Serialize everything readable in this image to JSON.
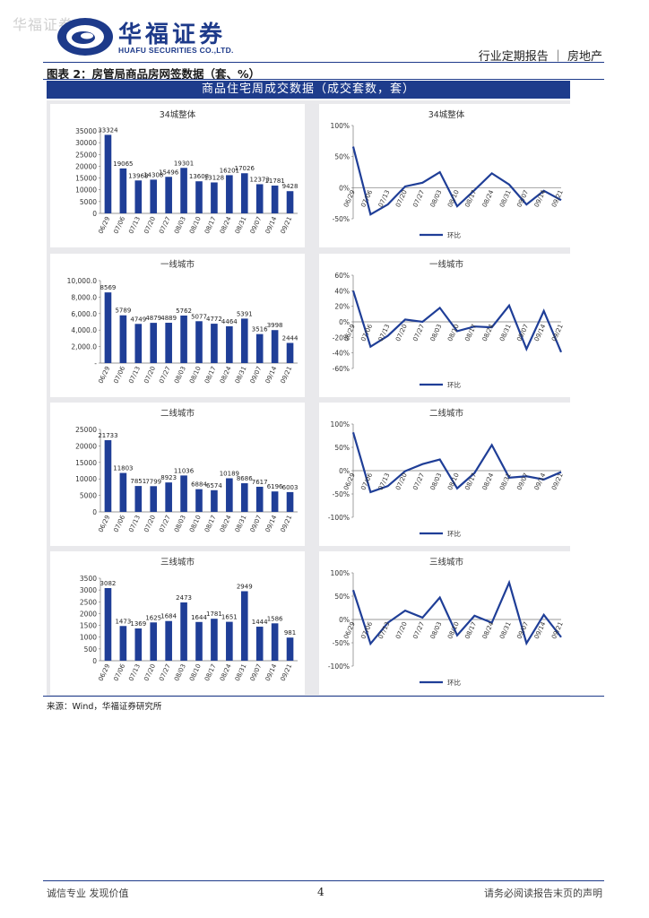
{
  "watermark": "华福证券",
  "header": {
    "brand_cn": "华福证券",
    "brand_en": "HUAFU SECURITIES CO.,LTD.",
    "report_type": "行业定期报告 ｜ 房地产"
  },
  "figure": {
    "title": "图表 2：房管局商品房网签数据（套、%）",
    "banner": "商品住宅周成交数据（成交套数，套）",
    "source": "来源：Wind，华福证券研究所"
  },
  "footer": {
    "left": "诚信专业  发现价值",
    "page": "4",
    "right": "请务必阅读报告末页的声明"
  },
  "colors": {
    "bar": "#1f3e97",
    "line": "#1f3e97",
    "banner": "#1e3c8c"
  },
  "chart_data": [
    {
      "type": "bar",
      "title": "34城整体",
      "categories": [
        "06/29",
        "07/06",
        "07/13",
        "07/20",
        "07/27",
        "08/03",
        "08/10",
        "08/17",
        "08/24",
        "08/31",
        "09/07",
        "09/14",
        "09/21"
      ],
      "values": [
        33324,
        19065,
        13968,
        14308,
        15496,
        19301,
        13608,
        13128,
        16201,
        17026,
        12373,
        11781,
        9428
      ],
      "value_labels": [
        "33324",
        "19065",
        "13968",
        "14308",
        "15496",
        "19301",
        "13608",
        "13128",
        "16201",
        "17026",
        "12373",
        "11781",
        "9428"
      ],
      "ylim": [
        0,
        35000
      ],
      "yticks": [
        "0",
        "5000",
        "10000",
        "15000",
        "20000",
        "25000",
        "30000",
        "35000"
      ]
    },
    {
      "type": "line",
      "title": "34城整体",
      "categories": [
        "06/29",
        "07/06",
        "07/13",
        "07/20",
        "07/27",
        "08/03",
        "08/10",
        "08/17",
        "08/24",
        "08/31",
        "09/07",
        "09/14",
        "09/21"
      ],
      "series": [
        {
          "name": "环比",
          "values": [
            66,
            -43,
            -27,
            2,
            8,
            25,
            -30,
            -4,
            23,
            5,
            -27,
            -5,
            -20
          ]
        }
      ],
      "ylim": [
        -50,
        100
      ],
      "yticks": [
        "-50%",
        "0%",
        "50%",
        "100%"
      ]
    },
    {
      "type": "bar",
      "title": "一线城市",
      "categories": [
        "06/29",
        "07/06",
        "07/13",
        "07/20",
        "07/27",
        "08/03",
        "08/10",
        "08/17",
        "08/24",
        "08/31",
        "09/07",
        "09/14",
        "09/21"
      ],
      "values": [
        8569,
        5789,
        4749,
        4879,
        4889,
        5762,
        5077,
        4772,
        4464,
        5391,
        3516,
        3998,
        2444
      ],
      "value_labels": [
        "8569",
        "5789",
        "4749",
        "4879",
        "4889",
        "5762",
        "5077",
        "4772",
        "4464",
        "5391",
        "3516",
        "3998",
        "2444"
      ],
      "ylim": [
        0,
        10000
      ],
      "yticks": [
        "-",
        "2,000.0",
        "4,000.0",
        "6,000.0",
        "8,000.0",
        "10,000.0"
      ]
    },
    {
      "type": "line",
      "title": "一线城市",
      "categories": [
        "06/29",
        "07/06",
        "07/13",
        "07/20",
        "07/27",
        "08/03",
        "08/10",
        "08/17",
        "08/24",
        "08/31",
        "09/07",
        "09/14",
        "09/21"
      ],
      "series": [
        {
          "name": "环比",
          "values": [
            40,
            -32,
            -18,
            3,
            0,
            18,
            -12,
            -6,
            -7,
            21,
            -35,
            14,
            -39
          ]
        }
      ],
      "ylim": [
        -60,
        60
      ],
      "yticks": [
        "-60%",
        "-40%",
        "-20%",
        "0%",
        "20%",
        "40%",
        "60%"
      ]
    },
    {
      "type": "bar",
      "title": "二线城市",
      "categories": [
        "06/29",
        "07/06",
        "07/13",
        "07/20",
        "07/27",
        "08/03",
        "08/10",
        "08/17",
        "08/24",
        "08/31",
        "09/07",
        "09/14",
        "09/21"
      ],
      "values": [
        21733,
        11803,
        7851,
        7799,
        8923,
        11036,
        6884,
        6574,
        10189,
        8686,
        7617,
        6196,
        6003
      ],
      "value_labels": [
        "21733",
        "11803",
        "7851",
        "7799",
        "8923",
        "11036",
        "6884",
        "6574",
        "10189",
        "8686",
        "7617",
        "6196",
        "6003"
      ],
      "ylim": [
        0,
        25000
      ],
      "yticks": [
        "0",
        "5000",
        "10000",
        "15000",
        "20000",
        "25000"
      ]
    },
    {
      "type": "line",
      "title": "二线城市",
      "categories": [
        "06/29",
        "07/06",
        "07/13",
        "07/20",
        "07/27",
        "08/03",
        "08/10",
        "08/17",
        "08/24",
        "08/31",
        "09/07",
        "09/14",
        "09/21"
      ],
      "series": [
        {
          "name": "环比",
          "values": [
            82,
            -46,
            -33,
            -1,
            14,
            24,
            -38,
            -5,
            55,
            -15,
            -12,
            -19,
            -3
          ]
        }
      ],
      "ylim": [
        -100,
        100
      ],
      "yticks": [
        "-100%",
        "-50%",
        "0%",
        "50%",
        "100%"
      ]
    },
    {
      "type": "bar",
      "title": "三线城市",
      "categories": [
        "06/29",
        "07/06",
        "07/13",
        "07/20",
        "07/27",
        "08/03",
        "08/10",
        "08/17",
        "08/24",
        "08/31",
        "09/07",
        "09/14",
        "09/21"
      ],
      "values": [
        3082,
        1473,
        1369,
        1625,
        1684,
        2473,
        1644,
        1781,
        1651,
        2949,
        1444,
        1586,
        981
      ],
      "value_labels": [
        "3082",
        "1473",
        "1369",
        "1625",
        "1684",
        "2473",
        "1644",
        "1781",
        "1651",
        "2949",
        "1444",
        "1586",
        "981"
      ],
      "ylim": [
        0,
        3500
      ],
      "yticks": [
        "0",
        "500",
        "1000",
        "1500",
        "2000",
        "2500",
        "3000",
        "3500"
      ]
    },
    {
      "type": "line",
      "title": "三线城市",
      "categories": [
        "06/29",
        "07/06",
        "07/13",
        "07/20",
        "07/27",
        "08/03",
        "08/10",
        "08/17",
        "08/24",
        "08/31",
        "09/07",
        "09/14",
        "09/21"
      ],
      "series": [
        {
          "name": "环比",
          "values": [
            63,
            -52,
            -7,
            19,
            4,
            47,
            -34,
            8,
            -7,
            79,
            -51,
            10,
            -38
          ]
        }
      ],
      "ylim": [
        -100,
        100
      ],
      "yticks": [
        "-100%",
        "-50%",
        "0%",
        "50%",
        "100%"
      ]
    }
  ]
}
